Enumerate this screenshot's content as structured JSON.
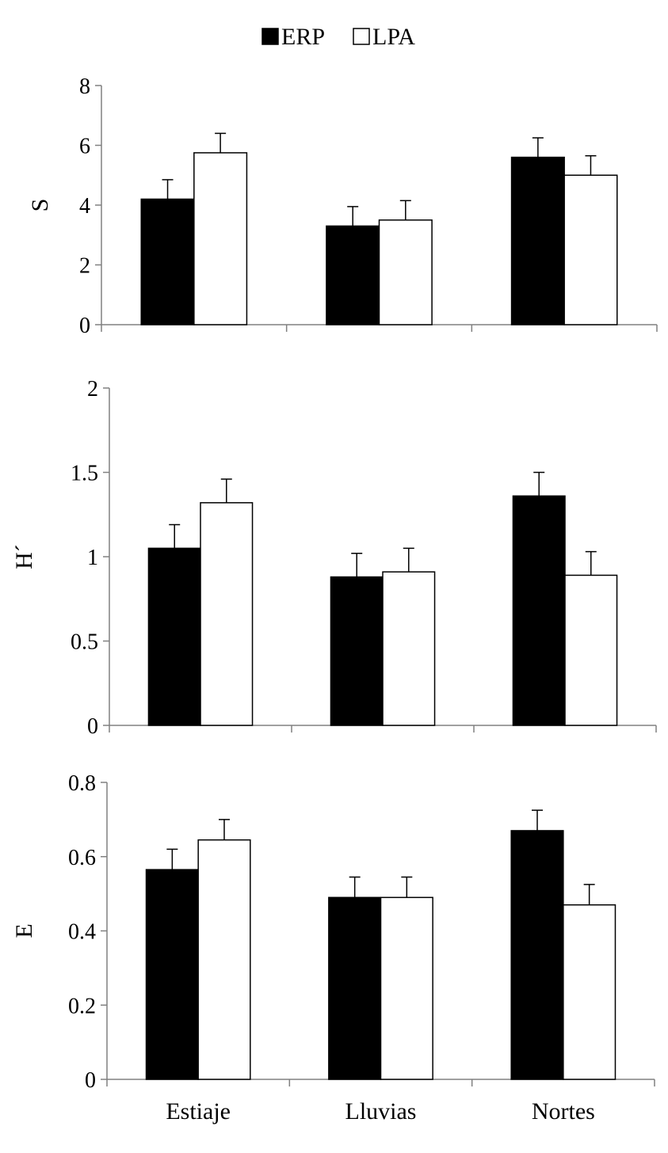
{
  "legend": [
    {
      "label": "ERP",
      "color": "#000000"
    },
    {
      "label": "LPA",
      "color": "#ffffff"
    }
  ],
  "chart_data": [
    {
      "type": "bar",
      "ylabel": "S",
      "categories": [
        "Estiaje",
        "Lluvias",
        "Nortes"
      ],
      "ylim": [
        0,
        8
      ],
      "yticks": [
        0,
        2,
        4,
        6,
        8
      ],
      "ytick_labels": [
        "0",
        "2",
        "4",
        "6",
        "8"
      ],
      "series": [
        {
          "name": "ERP",
          "values": [
            4.2,
            3.3,
            5.6
          ],
          "errors": [
            0.65,
            0.65,
            0.65
          ]
        },
        {
          "name": "LPA",
          "values": [
            5.75,
            3.5,
            5.0
          ],
          "errors": [
            0.65,
            0.65,
            0.65
          ]
        }
      ],
      "show_xlabels": false
    },
    {
      "type": "bar",
      "ylabel": "H´",
      "categories": [
        "Estiaje",
        "Lluvias",
        "Nortes"
      ],
      "ylim": [
        0,
        2
      ],
      "yticks": [
        0,
        0.5,
        1,
        1.5,
        2
      ],
      "ytick_labels": [
        "0",
        "0.5",
        "1",
        "1.5",
        "2"
      ],
      "series": [
        {
          "name": "ERP",
          "values": [
            1.05,
            0.88,
            1.36
          ],
          "errors": [
            0.14,
            0.14,
            0.14
          ]
        },
        {
          "name": "LPA",
          "values": [
            1.32,
            0.91,
            0.89
          ],
          "errors": [
            0.14,
            0.14,
            0.14
          ]
        }
      ],
      "show_xlabels": false
    },
    {
      "type": "bar",
      "ylabel": "E",
      "categories": [
        "Estiaje",
        "Lluvias",
        "Nortes"
      ],
      "ylim": [
        0,
        0.8
      ],
      "yticks": [
        0,
        0.2,
        0.4,
        0.6,
        0.8
      ],
      "ytick_labels": [
        "0",
        "0.2",
        "0.4",
        "0.6",
        "0.8"
      ],
      "series": [
        {
          "name": "ERP",
          "values": [
            0.565,
            0.49,
            0.67
          ],
          "errors": [
            0.055,
            0.055,
            0.055
          ]
        },
        {
          "name": "LPA",
          "values": [
            0.645,
            0.49,
            0.47
          ],
          "errors": [
            0.055,
            0.055,
            0.055
          ]
        }
      ],
      "show_xlabels": true
    }
  ]
}
